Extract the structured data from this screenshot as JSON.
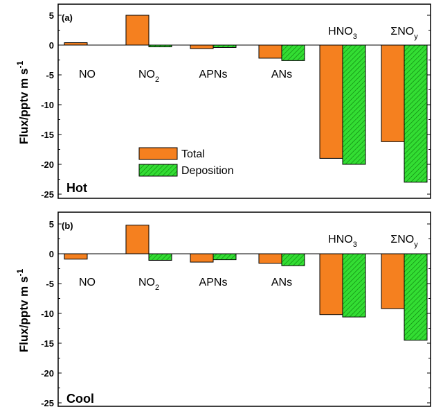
{
  "colors": {
    "total": "#f5801f",
    "deposition": "#33dd33",
    "axis": "#000000"
  },
  "legend": {
    "total_label": "Total",
    "deposition_label": "Deposition"
  },
  "chart_data": [
    {
      "type": "bar",
      "panel_label": "(a)",
      "condition_label": "Hot",
      "ylabel": "Flux/pptv m s-1",
      "ylim": [
        -25,
        6
      ],
      "yticks": [
        "5",
        "0",
        "-5",
        "-10",
        "-15",
        "-20",
        "-25"
      ],
      "categories": [
        "NO",
        "NO2",
        "APNs",
        "ANs",
        "HNO3",
        "ΣNOy"
      ],
      "series": [
        {
          "name": "Total",
          "values": [
            0.4,
            5.0,
            -0.6,
            -2.2,
            -19.0,
            -16.2
          ]
        },
        {
          "name": "Deposition",
          "values": [
            0.0,
            -0.3,
            -0.4,
            -2.6,
            -20.0,
            -23.0
          ]
        }
      ],
      "legend_position": "center-left"
    },
    {
      "type": "bar",
      "panel_label": "(b)",
      "condition_label": "Cool",
      "ylabel": "Flux/pptv m s-1",
      "ylim": [
        -25,
        6
      ],
      "yticks": [
        "5",
        "0",
        "-5",
        "-10",
        "-15",
        "-20",
        "-25"
      ],
      "categories": [
        "NO",
        "NO2",
        "APNs",
        "ANs",
        "HNO3",
        "ΣNOy"
      ],
      "series": [
        {
          "name": "Total",
          "values": [
            -0.9,
            4.8,
            -1.4,
            -1.6,
            -10.2,
            -9.2
          ]
        },
        {
          "name": "Deposition",
          "values": [
            0.0,
            -1.1,
            -1.0,
            -2.0,
            -10.6,
            -14.5
          ]
        }
      ]
    }
  ]
}
